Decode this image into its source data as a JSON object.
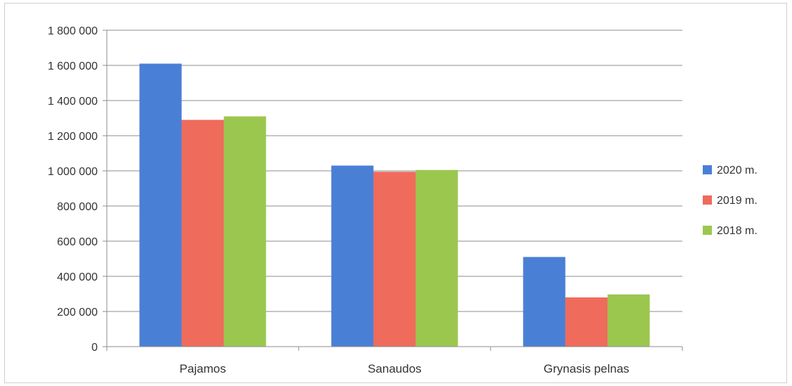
{
  "chart_data": {
    "type": "bar",
    "title": "",
    "xlabel": "",
    "ylabel": "",
    "categories": [
      "Pajamos",
      "Sanaudos",
      "Grynasis pelnas"
    ],
    "series": [
      {
        "name": "2020 m.",
        "color": "#4a7fd6",
        "values": [
          1610000,
          1030000,
          510000
        ]
      },
      {
        "name": "2019 m.",
        "color": "#ef6b5b",
        "values": [
          1290000,
          995000,
          280000
        ]
      },
      {
        "name": "2018 m.",
        "color": "#9bc74f",
        "values": [
          1310000,
          1005000,
          297000
        ]
      }
    ],
    "ylim": [
      0,
      1800000
    ],
    "yticks": [
      0,
      200000,
      400000,
      600000,
      800000,
      1000000,
      1200000,
      1400000,
      1600000,
      1800000
    ],
    "ytick_labels": [
      "0",
      "200 000",
      "400 000",
      "600 000",
      "800 000",
      "1 000 000",
      "1 200 000",
      "1 400 000",
      "1 600 000",
      "1 800 000"
    ],
    "grid": true,
    "legend_position": "right"
  }
}
